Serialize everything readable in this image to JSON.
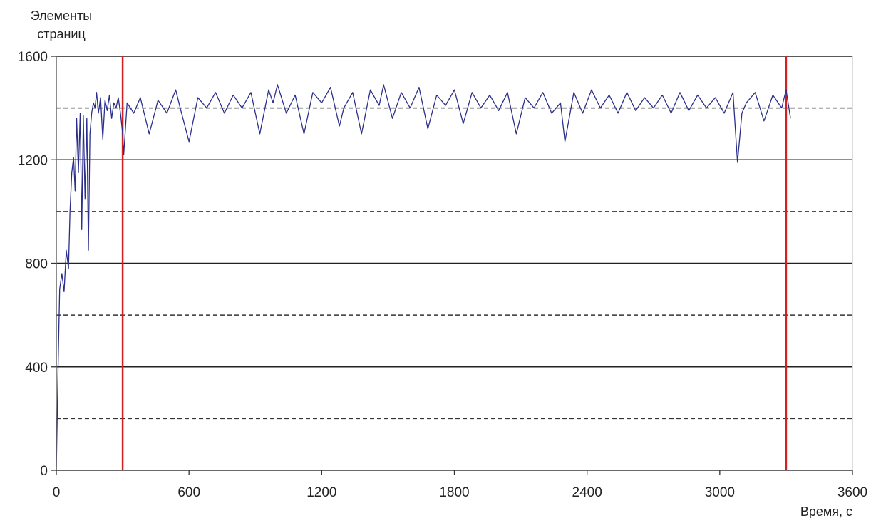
{
  "chart_data": {
    "type": "line",
    "ylabel_lines": [
      "Элементы",
      "страниц"
    ],
    "xlabel": "Время, с",
    "xlim": [
      0,
      3600
    ],
    "ylim": [
      0,
      1600
    ],
    "x_ticks": [
      0,
      600,
      1200,
      1800,
      2400,
      3000,
      3600
    ],
    "x_tick_labels": [
      "0",
      "600",
      "1200",
      "1800",
      "2400",
      "3000",
      "3600"
    ],
    "y_ticks": [
      0,
      400,
      800,
      1200,
      1600
    ],
    "y_tick_labels": [
      "0",
      "400",
      "800",
      "1200",
      "1600"
    ],
    "solid_gridlines": [
      400,
      800,
      1200,
      1600
    ],
    "dashed_gridlines": [
      200,
      600,
      1000,
      1400
    ],
    "vertical_markers": [
      300,
      3300
    ],
    "series": [
      {
        "x": [
          0,
          8,
          15,
          25,
          35,
          45,
          55,
          62,
          70,
          78,
          85,
          92,
          100,
          108,
          115,
          122,
          130,
          138,
          145,
          152,
          160,
          168,
          175,
          182,
          190,
          200,
          210,
          220,
          230,
          240,
          250,
          260,
          270,
          280,
          290,
          300,
          305,
          320,
          350,
          380,
          420,
          460,
          500,
          540,
          560,
          600,
          640,
          680,
          720,
          760,
          800,
          840,
          880,
          920,
          960,
          980,
          1000,
          1040,
          1080,
          1120,
          1160,
          1200,
          1240,
          1280,
          1300,
          1340,
          1380,
          1420,
          1460,
          1480,
          1520,
          1560,
          1600,
          1640,
          1680,
          1720,
          1760,
          1800,
          1840,
          1880,
          1920,
          1960,
          2000,
          2040,
          2080,
          2120,
          2160,
          2200,
          2240,
          2280,
          2300,
          2340,
          2380,
          2420,
          2460,
          2500,
          2540,
          2580,
          2620,
          2660,
          2700,
          2740,
          2780,
          2820,
          2860,
          2900,
          2940,
          2980,
          3020,
          3060,
          3080,
          3100,
          3120,
          3160,
          3200,
          3240,
          3280,
          3300,
          3320
        ],
        "values": [
          0,
          400,
          700,
          760,
          690,
          850,
          780,
          1000,
          1150,
          1210,
          1080,
          1360,
          1150,
          1380,
          930,
          1370,
          1050,
          1360,
          850,
          1300,
          1380,
          1420,
          1400,
          1460,
          1380,
          1440,
          1280,
          1430,
          1390,
          1450,
          1360,
          1420,
          1400,
          1440,
          1380,
          1300,
          1220,
          1420,
          1380,
          1440,
          1300,
          1430,
          1380,
          1470,
          1400,
          1270,
          1440,
          1400,
          1460,
          1380,
          1450,
          1400,
          1460,
          1300,
          1470,
          1420,
          1490,
          1380,
          1450,
          1300,
          1460,
          1420,
          1480,
          1330,
          1400,
          1460,
          1300,
          1470,
          1410,
          1490,
          1360,
          1460,
          1400,
          1480,
          1320,
          1450,
          1410,
          1470,
          1340,
          1460,
          1400,
          1450,
          1390,
          1460,
          1300,
          1440,
          1400,
          1460,
          1380,
          1420,
          1270,
          1460,
          1380,
          1470,
          1400,
          1450,
          1380,
          1460,
          1390,
          1440,
          1400,
          1450,
          1380,
          1460,
          1390,
          1450,
          1400,
          1440,
          1380,
          1460,
          1190,
          1380,
          1420,
          1460,
          1350,
          1450,
          1400,
          1470,
          1360
        ]
      }
    ]
  }
}
